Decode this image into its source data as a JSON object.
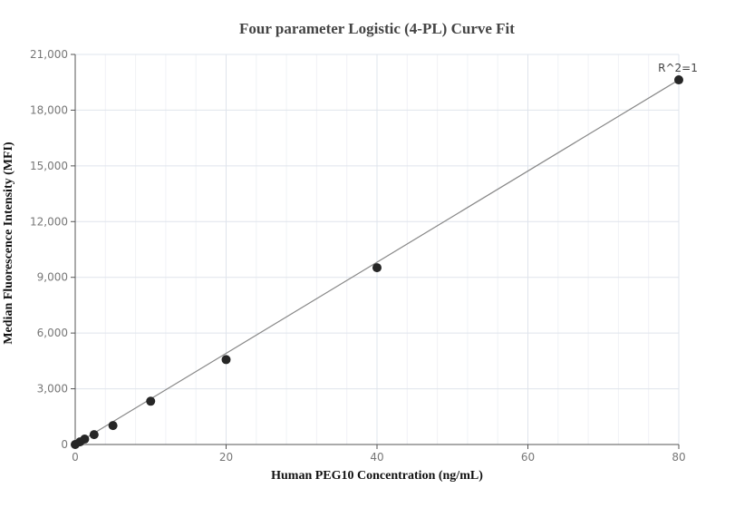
{
  "chart_data": {
    "type": "scatter",
    "title": "Four parameter Logistic (4-PL) Curve Fit",
    "xlabel": "Human PEG10 Concentration (ng/mL)",
    "ylabel": "Median Fluorescence Intensity (MFI)",
    "xlim": [
      0,
      80
    ],
    "ylim": [
      0,
      21000
    ],
    "x_ticks": [
      0,
      20,
      40,
      60,
      80
    ],
    "x_tick_labels": [
      "0",
      "20",
      "40",
      "60",
      "80"
    ],
    "y_ticks": [
      0,
      3000,
      6000,
      9000,
      12000,
      15000,
      18000,
      21000
    ],
    "y_tick_labels": [
      "0",
      "3,000",
      "6,000",
      "9,000",
      "12,000",
      "15,000",
      "18,000",
      "21,000"
    ],
    "grid": true,
    "legend": "none",
    "series": [
      {
        "name": "Standards",
        "marker": "circle",
        "color": "#262626",
        "x": [
          0,
          0.625,
          1.25,
          2.5,
          5,
          10,
          20,
          40,
          80
        ],
        "y": [
          0,
          140,
          290,
          530,
          1020,
          2330,
          4570,
          9520,
          19630
        ]
      },
      {
        "name": "4-PL fit",
        "type": "line",
        "color": "#888888",
        "x": [
          0,
          80
        ],
        "y": [
          0,
          19630
        ]
      }
    ],
    "annotations": [
      {
        "text": "R^2=1",
        "x": 80,
        "y": 19630,
        "position": "above"
      }
    ]
  }
}
